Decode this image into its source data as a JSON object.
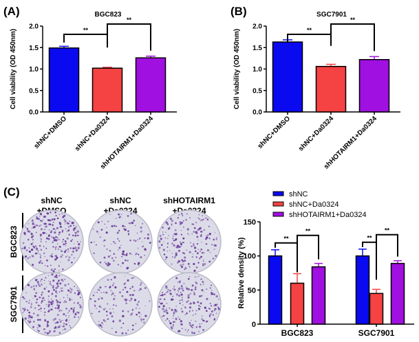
{
  "panel_labels": [
    "(A)",
    "(B)",
    "(C)"
  ],
  "colors": {
    "shNC": "#0a0af0",
    "shNC+Da0324": "#f54242",
    "shHOTAIRM1+Da0324": "#a010e0",
    "dish": "#dcdce8",
    "colony": "#6a3a9a"
  },
  "colony_panel": {
    "column_headers": [
      [
        "shNC",
        "+DMSO"
      ],
      [
        "shNC",
        "+Da0324"
      ],
      [
        "shHOTAIRM1",
        "+Da0324"
      ]
    ],
    "row_labels": [
      "BGC823",
      "SGC7901"
    ]
  },
  "chart_data": [
    {
      "type": "bar",
      "title": "BGC823",
      "ylabel": "Cell viability (OD 450nm)",
      "categories": [
        "shNC+DMSO",
        "shNC+Da0324",
        "shHOTAIRM1+Da0324"
      ],
      "values": [
        1.49,
        1.02,
        1.26
      ],
      "errors": [
        0.04,
        0.02,
        0.04
      ],
      "ylim": [
        0,
        2.0
      ],
      "yticks": [
        "0.0",
        "0.5",
        "1.0",
        "1.5",
        "2.0"
      ],
      "significance": [
        {
          "from": 0,
          "to": 1,
          "label": "**"
        },
        {
          "from": 1,
          "to": 2,
          "label": "**"
        }
      ],
      "grid": false
    },
    {
      "type": "bar",
      "title": "SGC7901",
      "ylabel": "Cell viability (OD 450nm)",
      "categories": [
        "shNC+DMSO",
        "shNC+Da0324",
        "shHOTAIRM1+Da0324"
      ],
      "values": [
        1.63,
        1.06,
        1.22
      ],
      "errors": [
        0.05,
        0.05,
        0.07
      ],
      "ylim": [
        0,
        2.0
      ],
      "yticks": [
        "0.0",
        "0.5",
        "1.0",
        "1.5",
        "2.0"
      ],
      "significance": [
        {
          "from": 0,
          "to": 1,
          "label": "**"
        },
        {
          "from": 1,
          "to": 2,
          "label": "**"
        }
      ],
      "grid": false
    },
    {
      "type": "bar",
      "ylabel": "Relative density (%)",
      "categories": [
        "BGC823",
        "SGC7901"
      ],
      "series": [
        {
          "name": "shNC",
          "values": [
            100,
            100
          ],
          "errors": [
            9,
            10
          ]
        },
        {
          "name": "shNC+Da0324",
          "values": [
            60,
            45
          ],
          "errors": [
            14,
            6
          ]
        },
        {
          "name": "shHOTAIRM1+Da0324",
          "values": [
            84,
            89
          ],
          "errors": [
            5,
            4
          ]
        }
      ],
      "ylim": [
        0,
        150
      ],
      "yticks": [
        "0",
        "50",
        "100",
        "150"
      ],
      "significance_label": "**",
      "legend_placement": "top",
      "grid": false
    }
  ]
}
